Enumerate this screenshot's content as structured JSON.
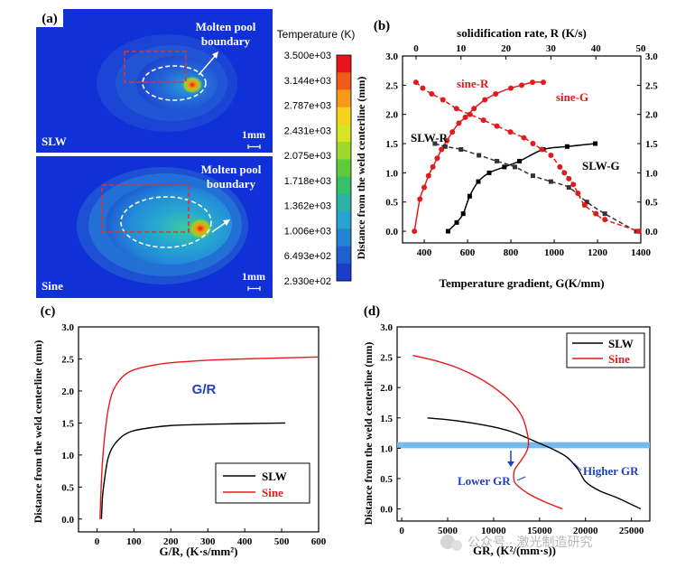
{
  "colors": {
    "slw": "#000000",
    "sine": "#e31a1c",
    "gr_band": "#74b9f0",
    "annot_blue": "#1f3fc4",
    "pool_bg": "#1030d8",
    "pool_dash_red": "#e23030"
  },
  "panel_a": {
    "label": "(a)",
    "top_case": "SLW",
    "bottom_case": "Sine",
    "molten_pool_top": [
      "Molten pool",
      "boundary"
    ],
    "molten_pool_bottom": [
      "Molten pool",
      "boundary"
    ],
    "scale_top": "1mm",
    "scale_bottom": "1mm",
    "colorbar": {
      "title": "Temperature (K)",
      "ticks": [
        "3.500e+03",
        "3.144e+03",
        "2.787e+03",
        "2.431e+03",
        "2.075e+03",
        "1.718e+03",
        "1.362e+03",
        "1.006e+03",
        "6.493e+02",
        "2.930e+02"
      ],
      "colors": [
        "#e8141d",
        "#f25a1a",
        "#f79a1a",
        "#f5d21c",
        "#d9e524",
        "#9fd82a",
        "#5fcb3a",
        "#36c06c",
        "#2ab1a6",
        "#26a4cf",
        "#2583d6",
        "#1f5fcf",
        "#1a3ec8"
      ]
    }
  },
  "chart_data": [
    {
      "panel": "(b)",
      "type": "line",
      "title": "",
      "xlabel": "Temperature gradient, G(K/mm)",
      "x2label": "solidification rate, R (K/s)",
      "ylabel": "Distance from the weld centerline (mm)",
      "xlim": [
        300,
        1400
      ],
      "x2lim": [
        -3,
        50
      ],
      "ylim": [
        -0.2,
        3.0
      ],
      "xticks": [
        400,
        600,
        800,
        1000,
        1200,
        1400
      ],
      "x2ticks": [
        0,
        10,
        20,
        30,
        40,
        50
      ],
      "yticks": [
        0.0,
        0.5,
        1.0,
        1.5,
        2.0,
        2.5,
        3.0
      ],
      "series": [
        {
          "name": "SLW-G",
          "axis": "G",
          "color": "#000000",
          "dash": false,
          "x": [
            510,
            550,
            580,
            610,
            650,
            700,
            770,
            840,
            950,
            1060,
            1190
          ],
          "y": [
            0.0,
            0.15,
            0.3,
            0.6,
            0.85,
            1.0,
            1.1,
            1.2,
            1.4,
            1.45,
            1.5
          ]
        },
        {
          "name": "sine-G",
          "axis": "G",
          "color": "#e31a1c",
          "dash": false,
          "x": [
            355,
            380,
            400,
            420,
            440,
            460,
            480,
            505,
            530,
            560,
            590,
            630,
            680,
            730,
            800,
            850,
            900,
            950
          ],
          "y": [
            0.0,
            0.55,
            0.75,
            0.95,
            1.1,
            1.25,
            1.4,
            1.55,
            1.7,
            1.85,
            1.95,
            2.1,
            2.25,
            2.35,
            2.45,
            2.5,
            2.55,
            2.55
          ]
        },
        {
          "name": "SLW-R",
          "axis": "R",
          "color": "#333333",
          "dash": true,
          "x": [
            4.2,
            6.5,
            10,
            14,
            18,
            22,
            26,
            30,
            34,
            38,
            42,
            49
          ],
          "y": [
            1.5,
            1.45,
            1.4,
            1.3,
            1.2,
            1.1,
            0.95,
            0.85,
            0.75,
            0.5,
            0.3,
            0.0
          ]
        },
        {
          "name": "sine-R",
          "axis": "R",
          "color": "#e31a1c",
          "dash": true,
          "x": [
            0,
            1.5,
            3.5,
            6,
            9,
            12,
            15,
            18,
            21,
            24,
            26,
            28,
            30,
            32,
            33,
            34,
            35,
            36,
            37.5,
            40,
            42,
            49.5
          ],
          "y": [
            2.55,
            2.45,
            2.35,
            2.25,
            2.1,
            2.0,
            1.9,
            1.8,
            1.7,
            1.6,
            1.5,
            1.4,
            1.3,
            1.1,
            1.0,
            0.9,
            0.8,
            0.65,
            0.45,
            0.3,
            0.2,
            0.0
          ]
        }
      ],
      "annotations": [
        "sine-R",
        "sine-G",
        "SLW-R",
        "SLW-G"
      ]
    },
    {
      "panel": "(c)",
      "type": "line",
      "title": "G/R",
      "xlabel": "G/R, (K·s/mm²)",
      "ylabel": "Distance from the weld centerline (mm)",
      "xlim": [
        -50,
        600
      ],
      "ylim": [
        -0.2,
        3.0
      ],
      "xticks": [
        0,
        100,
        200,
        300,
        400,
        500,
        600
      ],
      "yticks": [
        0.0,
        0.5,
        1.0,
        1.5,
        2.0,
        2.5,
        3.0
      ],
      "series": [
        {
          "name": "SLW",
          "color": "#000000",
          "x": [
            12,
            15,
            20,
            25,
            30,
            40,
            55,
            75,
            100,
            150,
            200,
            300,
            400,
            510
          ],
          "y": [
            0.0,
            0.35,
            0.6,
            0.8,
            0.95,
            1.1,
            1.22,
            1.32,
            1.38,
            1.43,
            1.46,
            1.48,
            1.49,
            1.5
          ]
        },
        {
          "name": "Sine",
          "color": "#e31a1c",
          "x": [
            8,
            10,
            12,
            15,
            20,
            25,
            30,
            40,
            55,
            75,
            100,
            150,
            200,
            300,
            400,
            600
          ],
          "y": [
            0.0,
            0.3,
            0.6,
            0.9,
            1.25,
            1.5,
            1.7,
            1.95,
            2.12,
            2.25,
            2.33,
            2.4,
            2.44,
            2.48,
            2.5,
            2.53
          ]
        }
      ],
      "legend": [
        "SLW",
        "Sine"
      ],
      "legend_position": "bottom-right"
    },
    {
      "panel": "(d)",
      "type": "line",
      "title": "",
      "xlabel": "GR, (K²/(mm·s))",
      "ylabel": "Distance from the weld centerline (mm)",
      "xlim": [
        -500,
        27000
      ],
      "ylim": [
        -0.2,
        3.0
      ],
      "xticks": [
        0,
        5000,
        10000,
        15000,
        20000,
        25000
      ],
      "yticks": [
        0.0,
        0.5,
        1.0,
        1.5,
        2.0,
        2.5,
        3.0
      ],
      "band": {
        "y": 1.05,
        "height": 0.1
      },
      "series": [
        {
          "name": "SLW",
          "color": "#000000",
          "x": [
            2800,
            5000,
            7500,
            10000,
            12000,
            13500,
            15000,
            16500,
            18000,
            19200,
            20000,
            21500,
            23500,
            26000
          ],
          "y": [
            1.5,
            1.47,
            1.42,
            1.35,
            1.27,
            1.18,
            1.08,
            0.98,
            0.85,
            0.65,
            0.45,
            0.3,
            0.18,
            0.0
          ]
        },
        {
          "name": "Sine",
          "color": "#e31a1c",
          "x": [
            1200,
            3500,
            6000,
            8500,
            10500,
            12000,
            13000,
            13500,
            13800,
            13600,
            13000,
            12300,
            12200,
            12500,
            13800,
            15500,
            17500
          ],
          "y": [
            2.53,
            2.45,
            2.33,
            2.15,
            1.95,
            1.75,
            1.55,
            1.35,
            1.1,
            0.95,
            0.8,
            0.65,
            0.5,
            0.4,
            0.25,
            0.12,
            0.0
          ]
        }
      ],
      "legend": [
        "SLW",
        "Sine"
      ],
      "legend_position": "top-right",
      "annotations": [
        "Lower GR",
        "Higher GR"
      ]
    }
  ],
  "watermark": "公众号 · 激光制造研究"
}
